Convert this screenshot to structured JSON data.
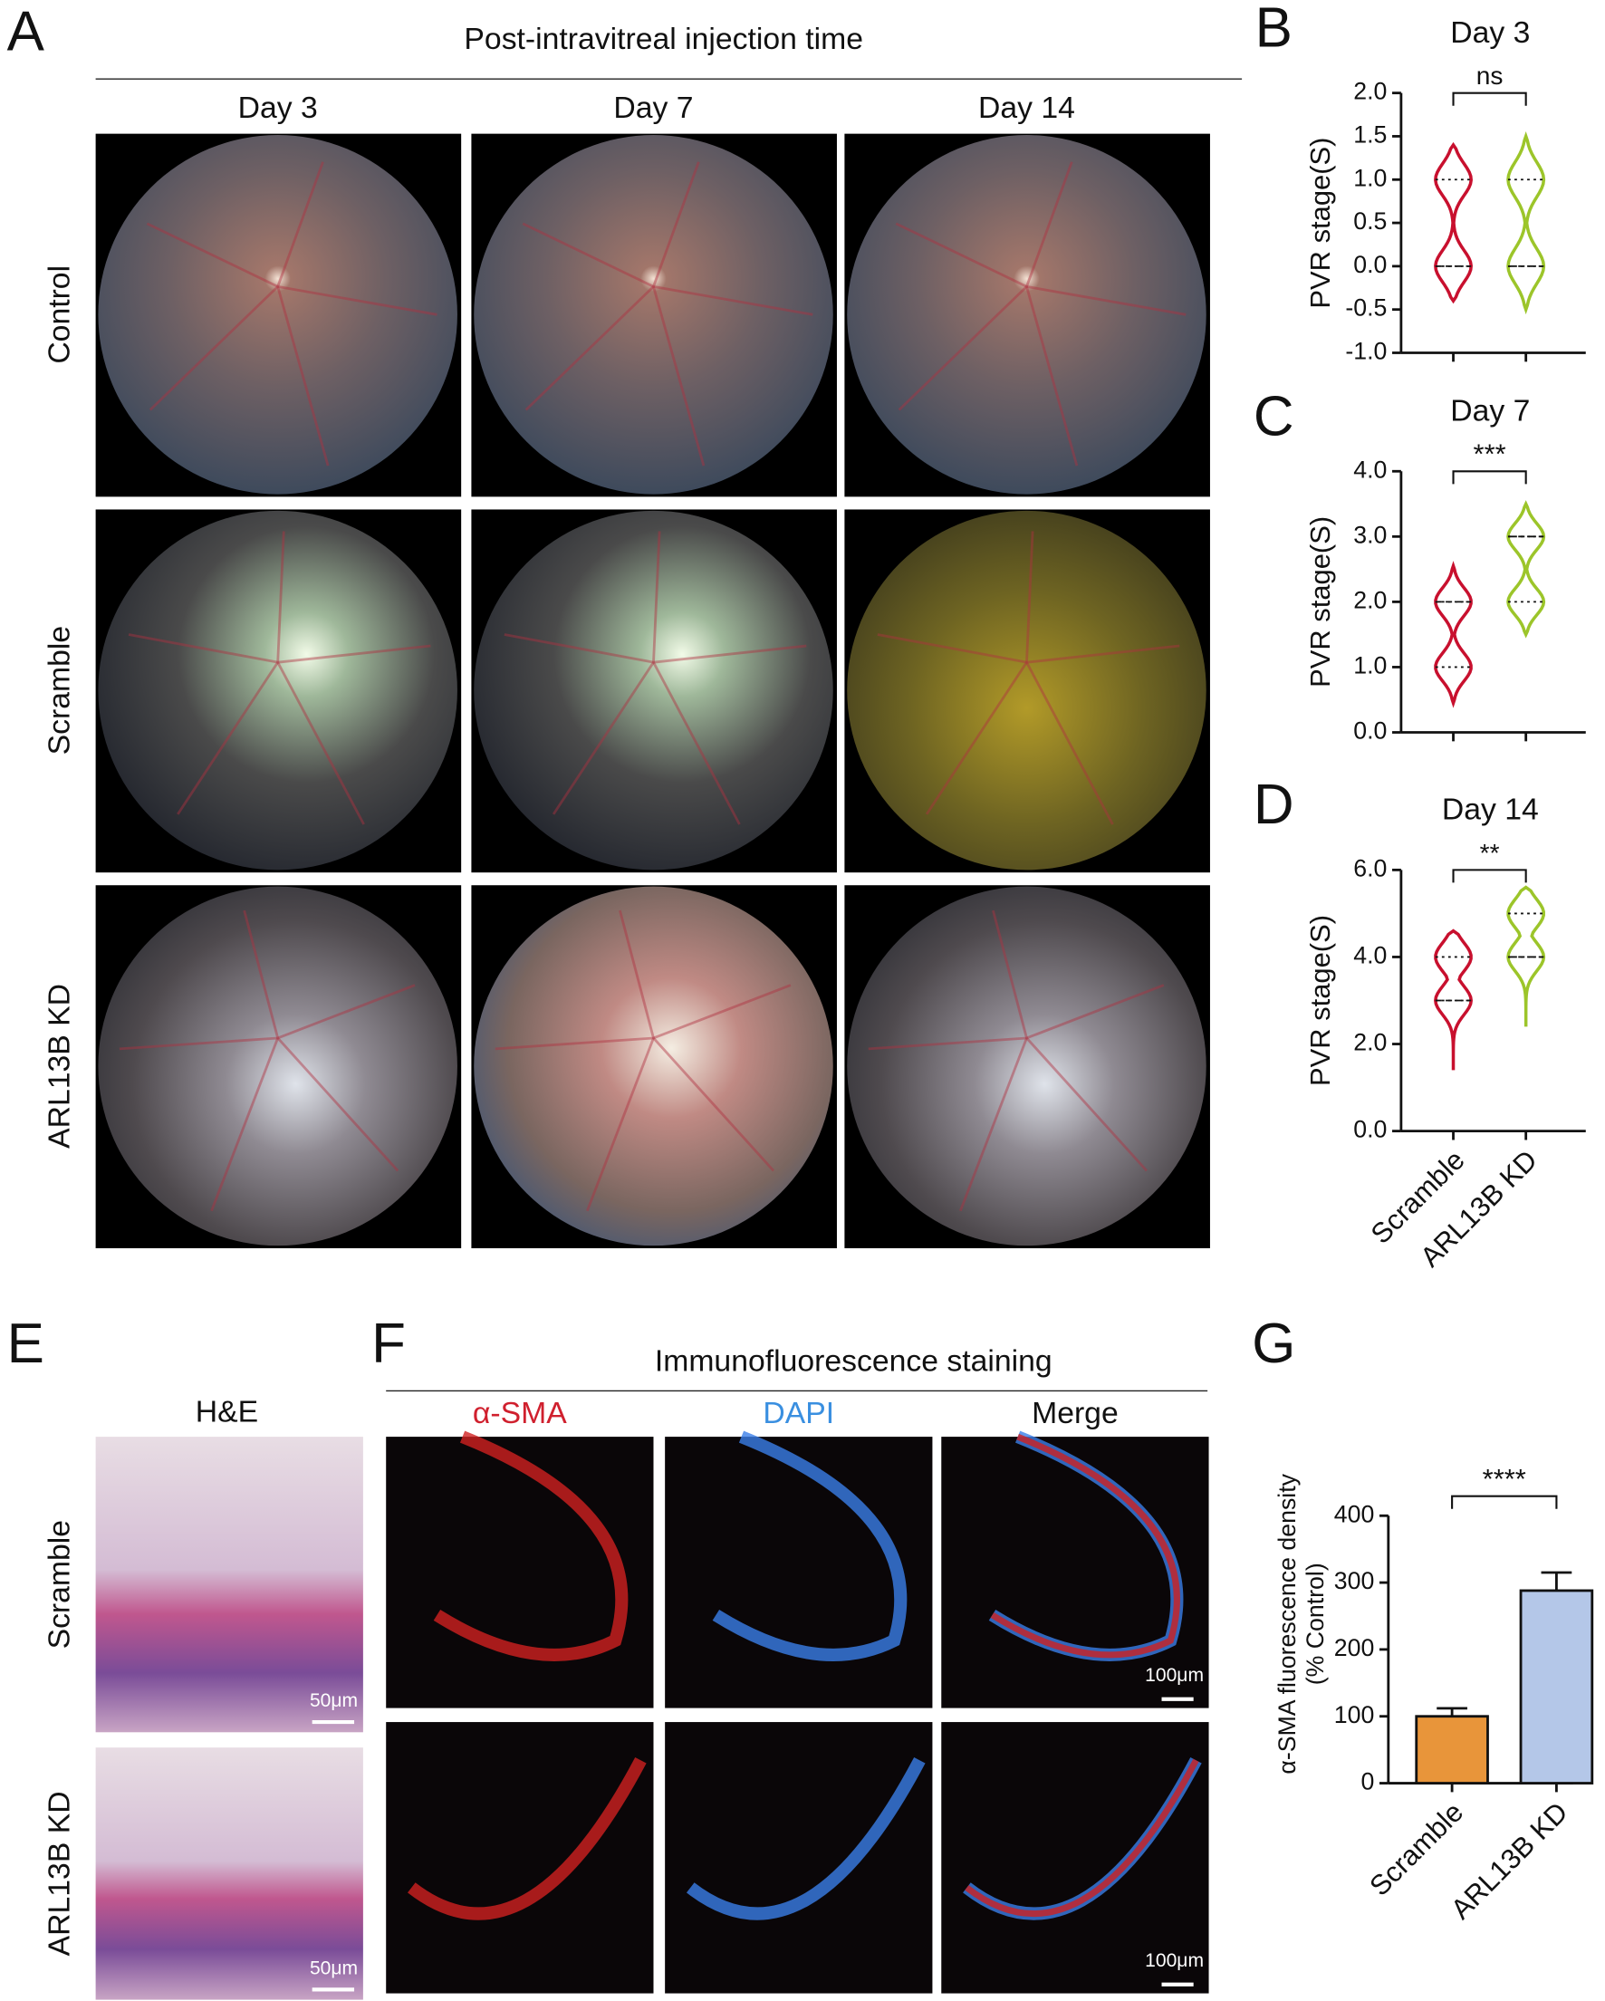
{
  "figure": {
    "panel_a": {
      "letter": "A",
      "title": "Post-intravitreal injection time",
      "columns": [
        "Day 3",
        "Day 7",
        "Day 14"
      ],
      "rows": [
        "Control",
        "Scramble",
        "ARL13B KD"
      ]
    },
    "panel_e": {
      "letter": "E",
      "title": "H&E",
      "rows": [
        "Scramble",
        "ARL13B KD"
      ],
      "scale_bar": "50μm"
    },
    "panel_f": {
      "letter": "F",
      "title": "Immunofluorescence staining",
      "columns": [
        "α-SMA",
        "DAPI",
        "Merge"
      ],
      "column_colors": [
        "#d0202e",
        "#3a8fe0",
        "#111111"
      ],
      "scale_bar": "100μm"
    }
  },
  "chart_data": [
    {
      "type": "violin",
      "letter": "B",
      "title": "Day 3",
      "y_label": "PVR stage(S)",
      "colors": [
        "#c8102e",
        "#9cc52a"
      ],
      "violins": [
        {
          "min": -0.4,
          "q1": 0,
          "median": 0,
          "q3": 1.0,
          "max": 1.4
        },
        {
          "min": -0.5,
          "q1": 0,
          "median": 0,
          "q3": 1.0,
          "max": 1.5
        }
      ],
      "ylim": [
        -1,
        2
      ],
      "yticks": [
        {
          "value": 2,
          "label": "2.0"
        },
        {
          "value": 1.5,
          "label": "1.5"
        },
        {
          "value": 1,
          "label": "1.0"
        },
        {
          "value": 0.5,
          "label": "0.5"
        },
        {
          "value": 0,
          "label": "0.0"
        },
        {
          "value": -0.5,
          "label": "-0.5"
        },
        {
          "value": -1,
          "label": "-1.0"
        }
      ],
      "annotation": "ns"
    },
    {
      "type": "violin",
      "letter": "C",
      "title": "Day 7",
      "y_label": "PVR stage(S)",
      "colors": [
        "#c8102e",
        "#9cc52a"
      ],
      "violins": [
        {
          "min": 0.45,
          "q1": 1.0,
          "median": 2.0,
          "q3": 2.0,
          "max": 2.55
        },
        {
          "min": 1.5,
          "q1": 2.0,
          "median": 3.0,
          "q3": 3.0,
          "max": 3.5
        }
      ],
      "ylim": [
        0,
        4
      ],
      "yticks": [
        {
          "value": 4,
          "label": "4.0"
        },
        {
          "value": 3,
          "label": "3.0"
        },
        {
          "value": 2,
          "label": "2.0"
        },
        {
          "value": 1,
          "label": "1.0"
        },
        {
          "value": 0,
          "label": "0.0"
        }
      ],
      "annotation": "***"
    },
    {
      "type": "violin",
      "letter": "D",
      "title": "Day 14",
      "y_label": "PVR stage(S)",
      "colors": [
        "#c8102e",
        "#9cc52a"
      ],
      "categories": [
        "Scramble",
        "ARL13B KD"
      ],
      "violins": [
        {
          "min": 1.4,
          "q1": 3.0,
          "median": 3.0,
          "q3": 4.0,
          "max": 4.6
        },
        {
          "min": 2.4,
          "q1": 4.0,
          "median": 4.0,
          "q3": 5.0,
          "max": 5.6
        }
      ],
      "ylim": [
        0,
        6
      ],
      "yticks": [
        {
          "value": 6,
          "label": "6.0"
        },
        {
          "value": 4,
          "label": "4.0"
        },
        {
          "value": 2,
          "label": "2.0"
        },
        {
          "value": 0,
          "label": "0.0"
        }
      ],
      "annotation": "**"
    },
    {
      "type": "bar",
      "letter": "G",
      "y_label": [
        "α-SMA fluorescence density",
        "(% Control)"
      ],
      "categories": [
        "Scramble",
        "ARL13B KD"
      ],
      "values": [
        100,
        288
      ],
      "errors": [
        12,
        27
      ],
      "colors": [
        "#e8953a",
        "#b4c7e8"
      ],
      "ylim": [
        0,
        400
      ],
      "yticks": [
        0,
        100,
        200,
        300,
        400
      ],
      "annotation": "****"
    }
  ]
}
